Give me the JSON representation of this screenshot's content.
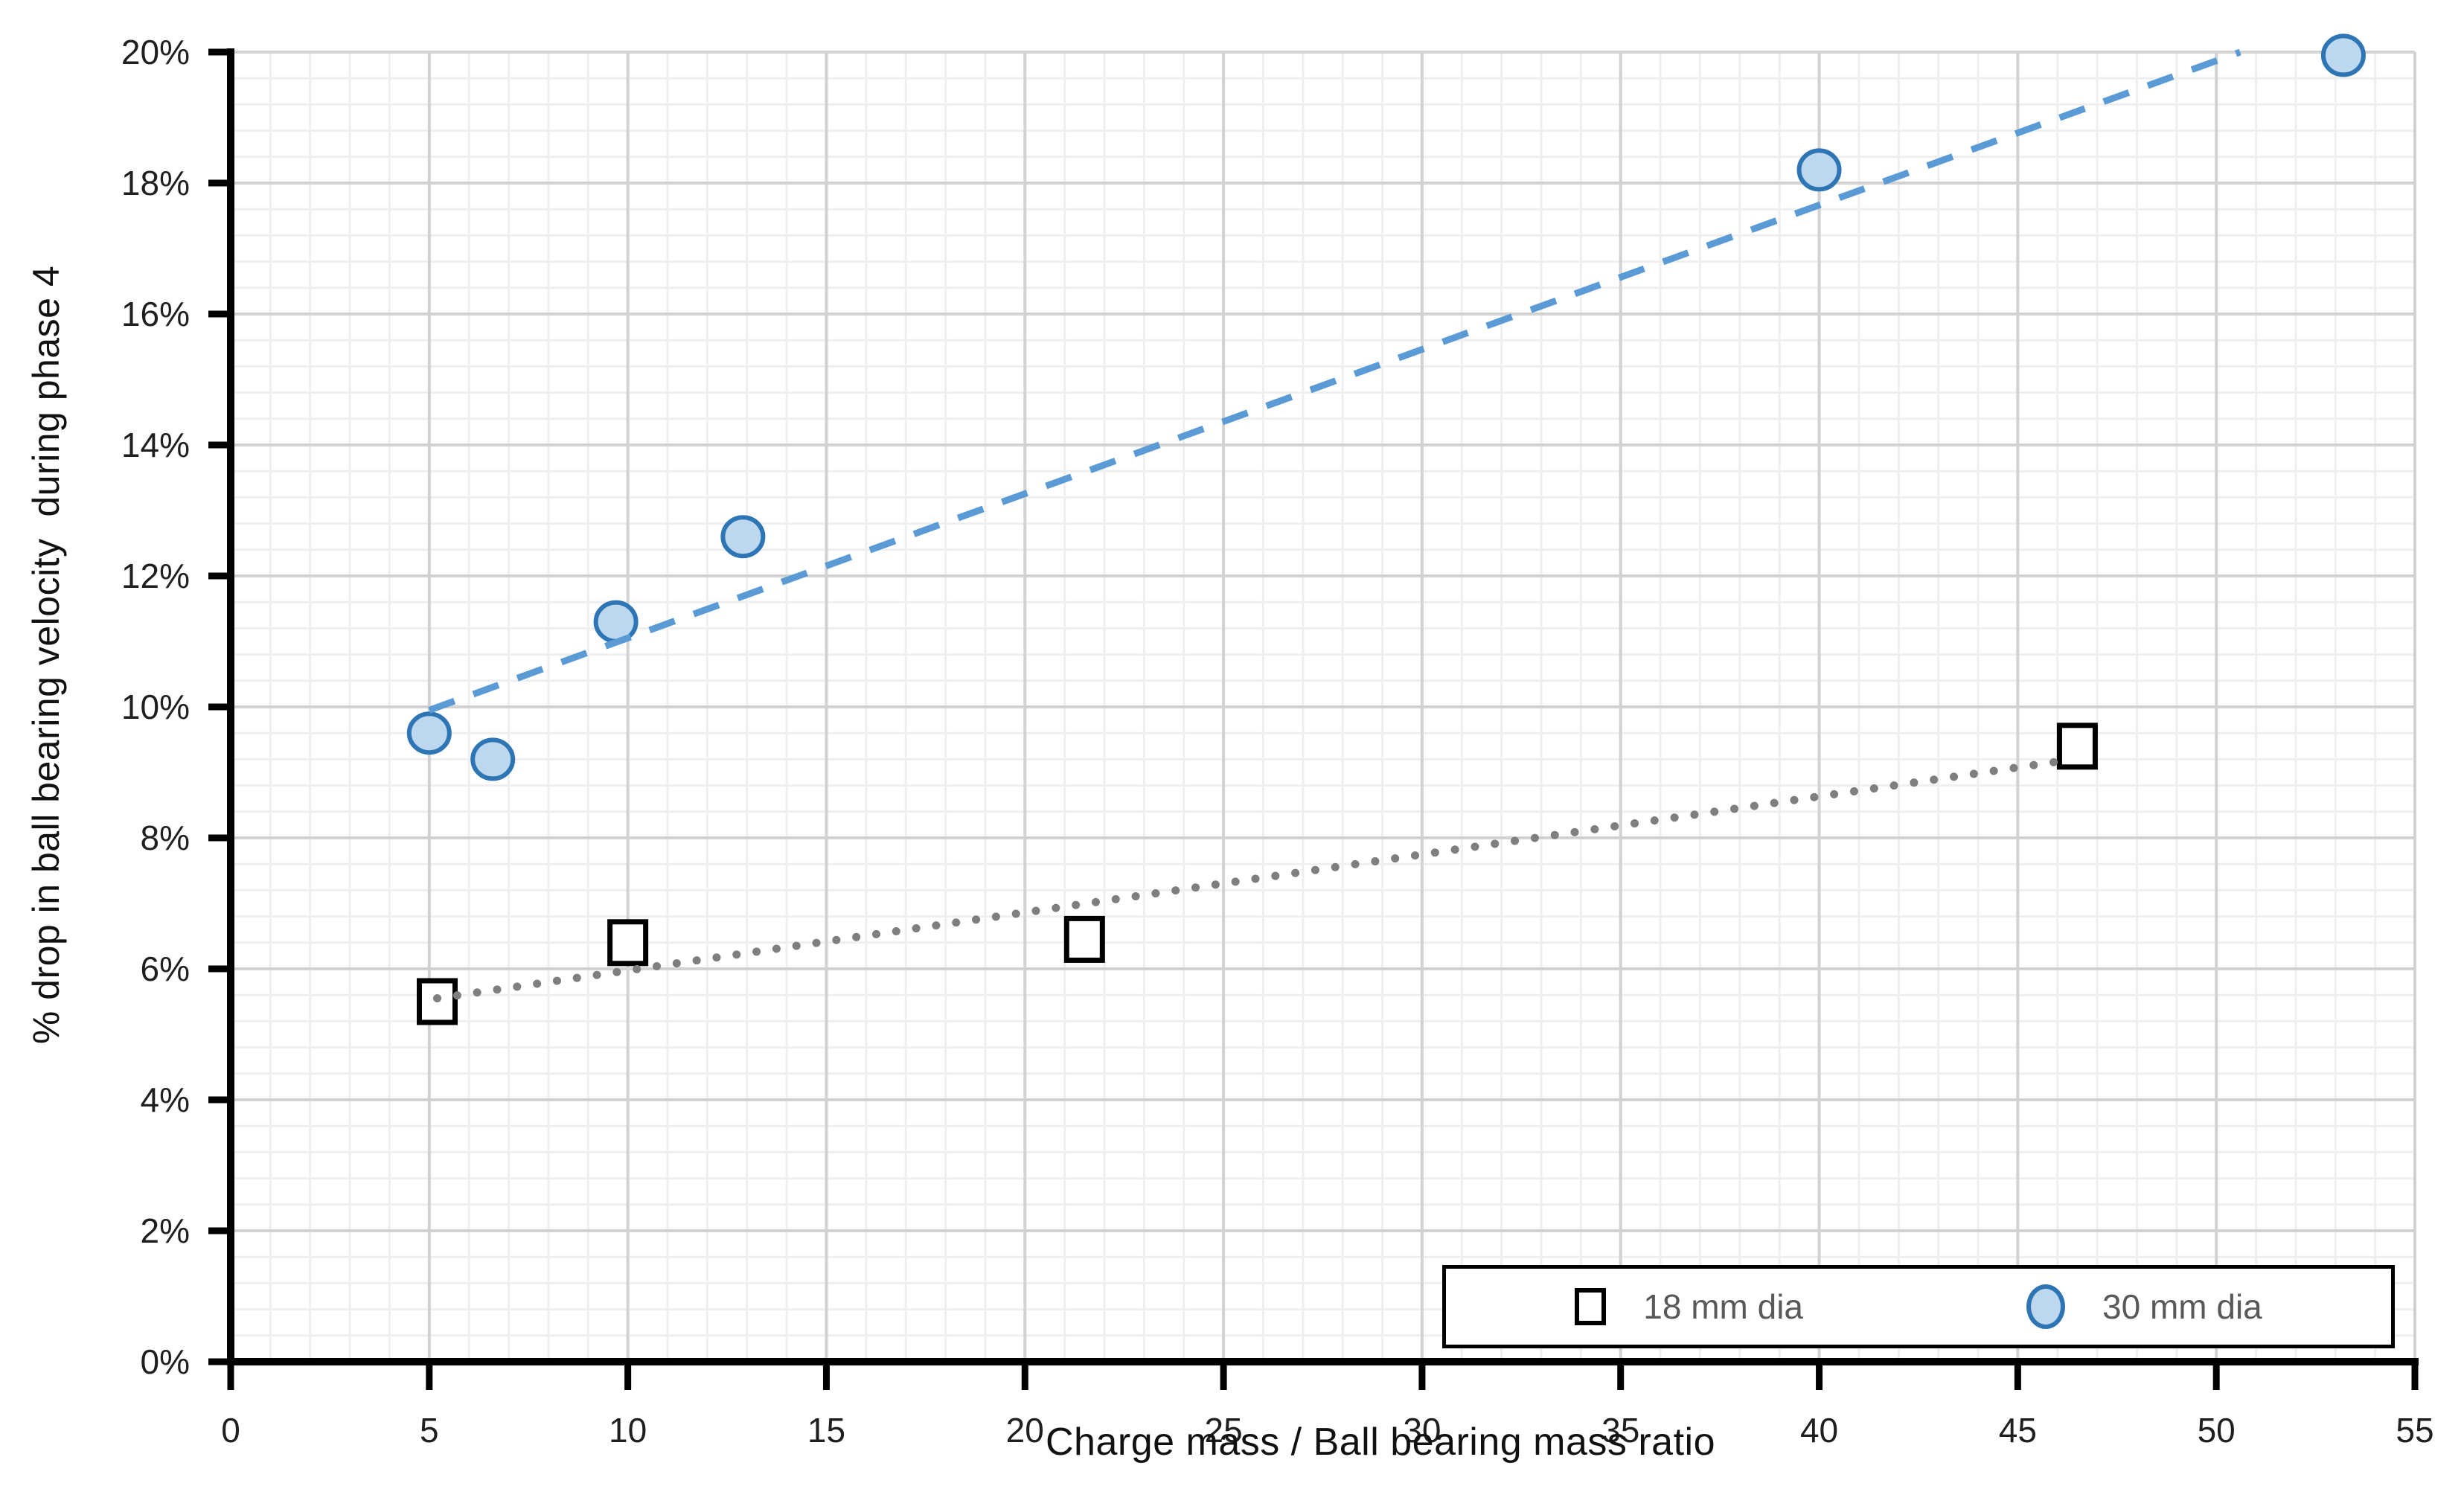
{
  "chart_data": {
    "type": "scatter",
    "title": "",
    "xlabel": "Charge mass / Ball bearing mass ratio",
    "ylabel": "% drop in ball bearing velocity  during phase 4",
    "xlim": [
      0,
      55
    ],
    "ylim_percent": [
      0,
      20
    ],
    "x_major_unit": 5,
    "x_minor_unit": 1,
    "y_major_unit_percent": 2,
    "y_minor_unit_percent": 0.4,
    "grid": "major-and-minor",
    "x_ticks": [
      0,
      5,
      10,
      15,
      20,
      25,
      30,
      35,
      40,
      45,
      50,
      55
    ],
    "x_tick_labels": [
      "0",
      "5",
      "10",
      "15",
      "20",
      "25",
      "30",
      "35",
      "40",
      "45",
      "50",
      "55"
    ],
    "y_ticks_percent": [
      0,
      2,
      4,
      6,
      8,
      10,
      12,
      14,
      16,
      18,
      20
    ],
    "y_tick_labels": [
      "0%",
      "2%",
      "4%",
      "6%",
      "8%",
      "10%",
      "12%",
      "14%",
      "16%",
      "18%",
      "20%"
    ],
    "legend_position": "inside-bottom-right",
    "series": [
      {
        "name": "18 mm dia",
        "marker": "square",
        "marker_fill": "#FFFFFF",
        "marker_stroke": "#000000",
        "points": [
          {
            "x": 5.2,
            "y": 5.5
          },
          {
            "x": 10.0,
            "y": 6.4
          },
          {
            "x": 21.5,
            "y": 6.45
          },
          {
            "x": 46.5,
            "y": 9.4
          }
        ],
        "trendline": {
          "style": "dotted",
          "color": "#7F7F7F",
          "from": {
            "x": 5.2,
            "y": 5.55
          },
          "to": {
            "x": 46.4,
            "y": 9.2
          }
        }
      },
      {
        "name": "30 mm dia",
        "marker": "circle",
        "marker_fill": "#BDD7EE",
        "marker_stroke": "#2E75B6",
        "points": [
          {
            "x": 5.0,
            "y": 9.6
          },
          {
            "x": 6.6,
            "y": 9.2
          },
          {
            "x": 9.7,
            "y": 11.3
          },
          {
            "x": 12.9,
            "y": 12.6
          },
          {
            "x": 40.0,
            "y": 18.2
          },
          {
            "x": 53.2,
            "y": 19.95
          }
        ],
        "trendline": {
          "style": "dashed",
          "color": "#5B9BD5",
          "from": {
            "x": 5.0,
            "y": 9.95
          },
          "to": {
            "x": 50.6,
            "y": 20.0
          }
        }
      }
    ]
  },
  "colors": {
    "background": "#FFFFFF",
    "axis_line": "#000000",
    "tick_label": "#1F1F1F",
    "axis_title": "#111111",
    "gridline_major": "#D2D2D2",
    "gridline_minor": "#EFEFEF",
    "legend_text": "#595959",
    "legend_border": "#000000",
    "series_18mm_stroke": "#000000",
    "series_30mm_fill": "#BDD7EE",
    "series_30mm_stroke": "#2E75B6",
    "trendline_18mm": "#7F7F7F",
    "trendline_30mm": "#5B9BD5"
  }
}
